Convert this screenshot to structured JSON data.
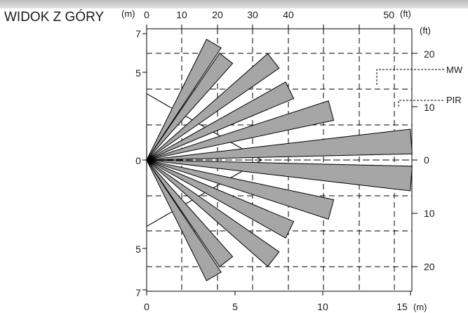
{
  "diagram": {
    "title": "WIDOK Z GÓRY",
    "left_unit": "(m)",
    "top_unit": "(ft)",
    "right_unit": "(ft)",
    "bottom_unit": "(m)",
    "top_ticks": [
      "0",
      "10",
      "20",
      "30",
      "40",
      "50"
    ],
    "bottom_ticks": [
      "0",
      "5",
      "10",
      "15"
    ],
    "left_ticks": [
      "7",
      "5",
      "0",
      "5",
      "7"
    ],
    "right_ticks": [
      "20",
      "10",
      "0",
      "10",
      "20"
    ],
    "callouts": {
      "mw": "MW",
      "pir": "PIR"
    }
  },
  "chart_data": {
    "type": "coverage-pattern",
    "x_range_m": [
      0,
      15
    ],
    "y_range_m": [
      -7,
      7
    ],
    "x_range_ft": [
      0,
      50
    ],
    "mw_range_m": 15,
    "pir_zone_angles_deg": [
      60,
      52,
      38,
      26,
      15,
      4,
      -4,
      -15,
      -26,
      -38,
      -52,
      -60
    ],
    "pir_zone_lengths_m": [
      7.6,
      7.3,
      9.1,
      9.0,
      10.8,
      15.0,
      15.0,
      10.8,
      9.0,
      9.1,
      7.3,
      7.6
    ],
    "colors": {
      "zone_fill": "#a6a6a6",
      "line": "#000000"
    }
  }
}
